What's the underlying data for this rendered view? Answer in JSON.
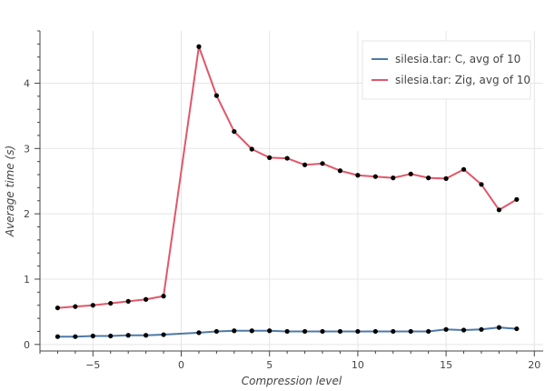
{
  "chart_data": {
    "type": "line",
    "xlabel": "Compression level",
    "ylabel": "Average time (s)",
    "xlim": [
      -8,
      20.5
    ],
    "ylim": [
      -0.1,
      4.8
    ],
    "x_ticks": [
      -5,
      0,
      5,
      10,
      15,
      20
    ],
    "x_tick_labels": [
      "−5",
      "0",
      "5",
      "10",
      "15",
      "20"
    ],
    "y_ticks": [
      0,
      1,
      2,
      3,
      4
    ],
    "y_tick_labels": [
      "0",
      "1",
      "2",
      "3",
      "4"
    ],
    "grid": true,
    "legend_position": "top-right",
    "x": [
      -7,
      -6,
      -5,
      -4,
      -3,
      -2,
      -1,
      1,
      2,
      3,
      4,
      5,
      6,
      7,
      8,
      9,
      10,
      11,
      12,
      13,
      14,
      15,
      16,
      17,
      18,
      19
    ],
    "series": [
      {
        "name": "silesia.tar: C, avg of 10",
        "color": "#4e79a7",
        "values": [
          0.12,
          0.12,
          0.13,
          0.13,
          0.14,
          0.14,
          0.15,
          0.18,
          0.2,
          0.21,
          0.21,
          0.21,
          0.2,
          0.2,
          0.2,
          0.2,
          0.2,
          0.2,
          0.2,
          0.2,
          0.2,
          0.23,
          0.22,
          0.23,
          0.26,
          0.24
        ]
      },
      {
        "name": "silesia.tar: Zig, avg of 10",
        "color": "#e15769",
        "values": [
          0.56,
          0.58,
          0.6,
          0.63,
          0.66,
          0.69,
          0.74,
          4.56,
          3.81,
          3.26,
          2.99,
          2.86,
          2.85,
          2.75,
          2.77,
          2.66,
          2.59,
          2.57,
          2.55,
          2.61,
          2.55,
          2.54,
          2.68,
          2.45,
          2.06,
          2.22
        ]
      }
    ]
  }
}
